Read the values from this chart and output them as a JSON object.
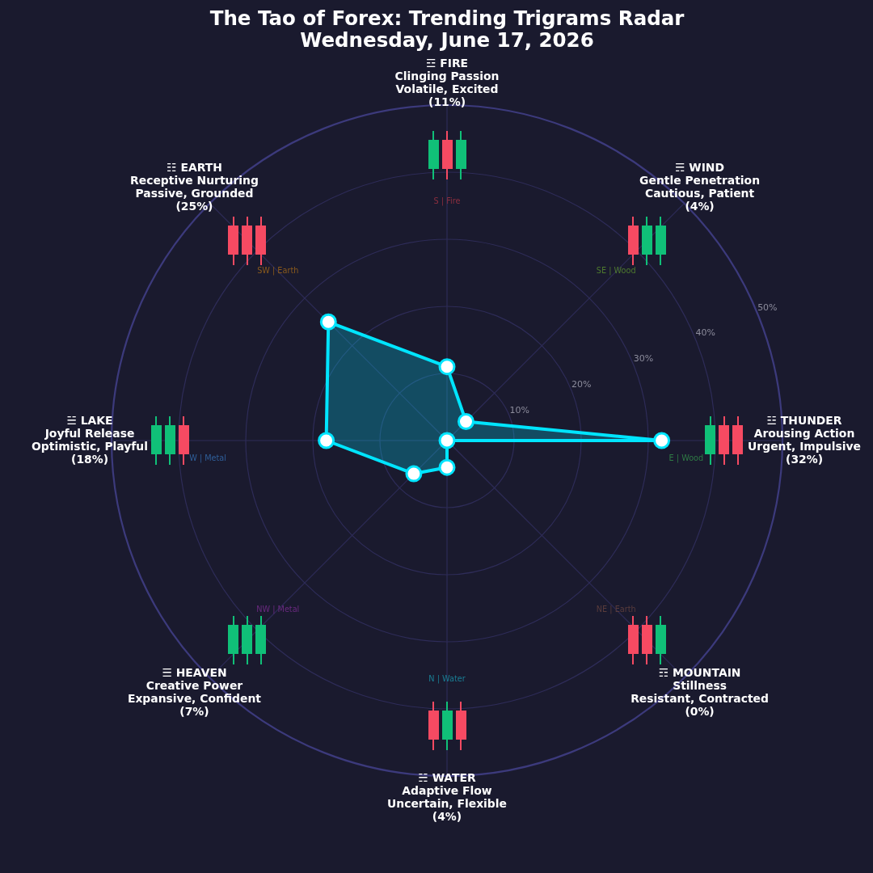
{
  "chart_data": {
    "type": "radar",
    "title": "The Tao of Forex: Trending Trigrams Radar",
    "subtitle": "Wednesday, June 17, 2026",
    "categories": [
      "☲ FIRE\nClinging Passion\nVolatile, Excited\n(11%)",
      "☴ WIND\nGentle Penetration\nCautious, Patient\n(4%)",
      "☳ THUNDER\nArousing Action\nUrgent, Impulsive\n(32%)",
      "☶ MOUNTAIN\nStillness\nResistant, Contracted\n(0%)",
      "☵ WATER\nAdaptive Flow\nUncertain, Flexible\n(4%)",
      "☰ HEAVEN\nCreative Power\nExpansive, Confident\n(7%)",
      "☱ LAKE\nJoyful Release\nOptimistic, Playful\n(18%)",
      "☷ EARTH\nReceptive Nurturing\nPassive, Grounded\n(25%)"
    ],
    "series": [
      {
        "color": "#00e5ff",
        "values": [
          11,
          4,
          32,
          0,
          4,
          7,
          18,
          25
        ]
      }
    ],
    "ylim": [
      0,
      50
    ],
    "yticks": [
      {
        "value": 10,
        "label": "10%"
      },
      {
        "value": 20,
        "label": "20%"
      },
      {
        "value": 30,
        "label": "30%"
      },
      {
        "value": 40,
        "label": "40%"
      },
      {
        "value": 50,
        "label": "50%"
      }
    ],
    "grid": true,
    "legend": false,
    "marker": "circle",
    "annotations": [
      "S | Fire",
      "SE | Wood",
      "E | Wood",
      "NE | Earth",
      "N | Water",
      "NW | Metal",
      "W | Metal",
      "SW | Earth"
    ]
  }
}
